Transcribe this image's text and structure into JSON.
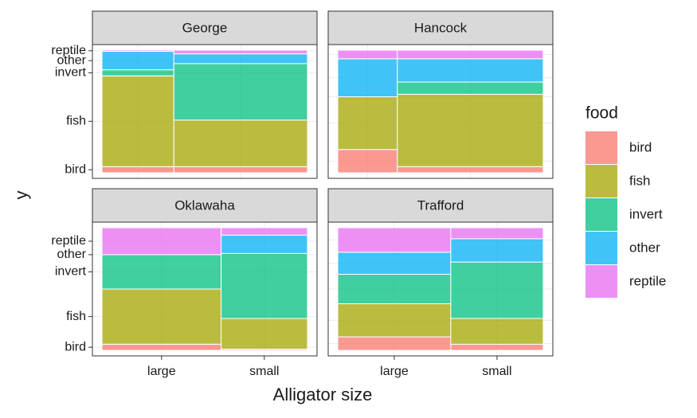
{
  "chart_data": [
    {
      "type": "mosaic",
      "title": "George",
      "categories": [
        "large",
        "small"
      ],
      "widths": [
        35,
        65
      ],
      "series": [
        {
          "name": "bird",
          "color": "#F8766D",
          "values": [
            5,
            5
          ]
        },
        {
          "name": "fish",
          "color": "#A3A500",
          "values": [
            74,
            38
          ]
        },
        {
          "name": "invert",
          "color": "#00BF7D",
          "values": [
            5,
            46
          ]
        },
        {
          "name": "other",
          "color": "#00B0F6",
          "values": [
            15,
            8
          ]
        },
        {
          "name": "reptile",
          "color": "#E76BF3",
          "values": [
            1,
            3
          ]
        }
      ]
    },
    {
      "type": "mosaic",
      "title": "Hancock",
      "categories": [
        "large",
        "small"
      ],
      "widths": [
        29,
        71
      ],
      "series": [
        {
          "name": "bird",
          "color": "#F8766D",
          "values": [
            19,
            5
          ]
        },
        {
          "name": "fish",
          "color": "#A3A500",
          "values": [
            43,
            59
          ]
        },
        {
          "name": "invert",
          "color": "#00BF7D",
          "values": [
            0,
            10
          ]
        },
        {
          "name": "other",
          "color": "#00B0F6",
          "values": [
            31,
            19
          ]
        },
        {
          "name": "reptile",
          "color": "#E76BF3",
          "values": [
            7,
            7
          ]
        }
      ]
    },
    {
      "type": "mosaic",
      "title": "Oklawaha",
      "categories": [
        "large",
        "small"
      ],
      "widths": [
        58,
        42
      ],
      "series": [
        {
          "name": "bird",
          "color": "#F8766D",
          "values": [
            5,
            1
          ]
        },
        {
          "name": "fish",
          "color": "#A3A500",
          "values": [
            45,
            25
          ]
        },
        {
          "name": "invert",
          "color": "#00BF7D",
          "values": [
            28,
            53
          ]
        },
        {
          "name": "other",
          "color": "#00B0F6",
          "values": [
            0,
            15
          ]
        },
        {
          "name": "reptile",
          "color": "#E76BF3",
          "values": [
            22,
            6
          ]
        }
      ]
    },
    {
      "type": "mosaic",
      "title": "Trafford",
      "categories": [
        "large",
        "small"
      ],
      "widths": [
        55,
        45
      ],
      "series": [
        {
          "name": "bird",
          "color": "#F8766D",
          "values": [
            11,
            5
          ]
        },
        {
          "name": "fish",
          "color": "#A3A500",
          "values": [
            27,
            21
          ]
        },
        {
          "name": "invert",
          "color": "#00BF7D",
          "values": [
            24,
            46
          ]
        },
        {
          "name": "other",
          "color": "#00B0F6",
          "values": [
            18,
            19
          ]
        },
        {
          "name": "reptile",
          "color": "#E76BF3",
          "values": [
            20,
            9
          ]
        }
      ]
    }
  ],
  "xlabel": "Alligator size",
  "ylabel": "y",
  "legend_title": "food"
}
